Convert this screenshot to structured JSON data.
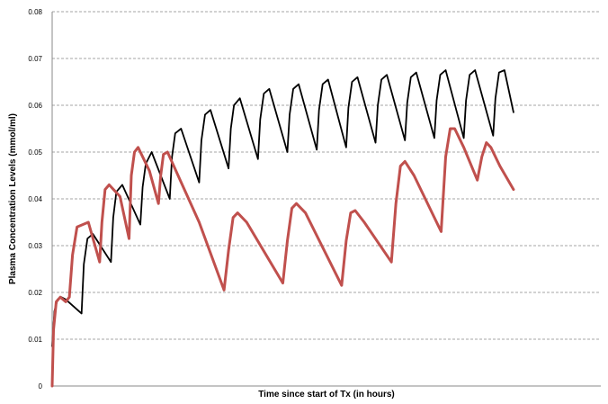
{
  "chart_data": {
    "type": "line",
    "xlabel": "Time since start of Tx (in hours)",
    "ylabel": "Plasma Concentration Levels (mmol/ml)",
    "ylim": [
      0,
      0.08
    ],
    "yticks": [
      "0",
      "0.01",
      "0.02",
      "0.03",
      "0.04",
      "0.05",
      "0.06",
      "0.07",
      "0.08"
    ],
    "grid": true,
    "x_range": [
      0,
      104
    ],
    "series": [
      {
        "color": "#000000",
        "x": [
          0,
          0.5,
          1.2,
          2.0,
          3.0,
          6.5,
          7.0,
          7.8,
          9.0,
          13.0,
          13.5,
          14.2,
          15.5,
          19.5,
          20.0,
          20.7,
          22.0,
          26.0,
          26.5,
          27.2,
          28.5,
          32.5,
          33.0,
          33.8,
          35.0,
          39.0,
          39.5,
          40.2,
          41.5,
          45.5,
          46.0,
          46.8,
          48.0,
          52.0,
          52.5,
          53.3,
          54.5,
          58.5,
          59.0,
          59.8,
          61.0,
          65.0,
          65.5,
          66.3,
          67.5,
          71.5,
          72.0,
          72.8,
          74.0,
          78.0,
          78.5,
          79.3,
          80.5,
          84.5,
          85.0,
          85.8,
          87.0,
          91.0,
          91.5,
          92.3,
          93.5,
          97.5,
          98.0,
          98.8,
          100.0,
          102.0
        ],
        "y": [
          0.0085,
          0.016,
          0.0185,
          0.019,
          0.0185,
          0.0155,
          0.026,
          0.0315,
          0.0325,
          0.0265,
          0.036,
          0.0415,
          0.043,
          0.0345,
          0.0425,
          0.0475,
          0.05,
          0.04,
          0.049,
          0.054,
          0.055,
          0.0435,
          0.0525,
          0.058,
          0.059,
          0.0465,
          0.055,
          0.06,
          0.0615,
          0.0485,
          0.057,
          0.0625,
          0.0635,
          0.05,
          0.058,
          0.0635,
          0.0645,
          0.0505,
          0.059,
          0.0645,
          0.0655,
          0.051,
          0.0595,
          0.065,
          0.066,
          0.052,
          0.06,
          0.0655,
          0.0665,
          0.0525,
          0.0605,
          0.066,
          0.067,
          0.053,
          0.061,
          0.0665,
          0.0675,
          0.053,
          0.061,
          0.0665,
          0.0675,
          0.0535,
          0.0615,
          0.067,
          0.0675,
          0.0585
        ]
      },
      {
        "color": "#c0504d",
        "x": [
          0,
          0.3,
          0.9,
          1.8,
          3.0,
          3.8,
          4.5,
          5.5,
          8.0,
          10.5,
          11.0,
          11.7,
          12.6,
          15.0,
          17.0,
          17.5,
          18.2,
          19.0,
          21.5,
          23.5,
          24.0,
          24.6,
          25.5,
          32.5,
          38.0,
          39.0,
          40.0,
          41.0,
          43.0,
          51.0,
          52.0,
          53.0,
          54.0,
          56.0,
          64.0,
          65.0,
          66.0,
          67.0,
          69.0,
          75.0,
          76.0,
          77.0,
          78.0,
          80.0,
          86.0,
          87.0,
          88.0,
          89.0,
          91.0,
          94.0,
          95.0,
          96.0,
          97.0,
          99.0,
          102.0
        ],
        "y": [
          0,
          0.012,
          0.018,
          0.019,
          0.018,
          0.019,
          0.028,
          0.034,
          0.035,
          0.0265,
          0.035,
          0.042,
          0.043,
          0.0405,
          0.0315,
          0.045,
          0.05,
          0.051,
          0.046,
          0.039,
          0.045,
          0.0495,
          0.05,
          0.035,
          0.0205,
          0.029,
          0.036,
          0.037,
          0.035,
          0.022,
          0.031,
          0.038,
          0.039,
          0.037,
          0.0215,
          0.031,
          0.037,
          0.0375,
          0.035,
          0.0265,
          0.039,
          0.047,
          0.048,
          0.045,
          0.033,
          0.049,
          0.055,
          0.055,
          0.051,
          0.044,
          0.049,
          0.052,
          0.051,
          0.047,
          0.042
        ]
      }
    ]
  }
}
